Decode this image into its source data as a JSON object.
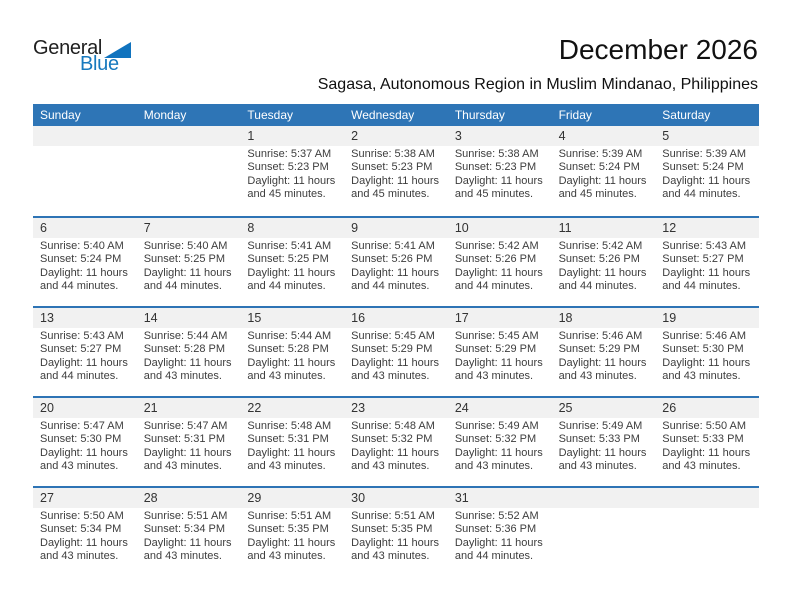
{
  "logo": {
    "general": "General",
    "blue": "Blue"
  },
  "title": "December 2026",
  "subtitle": "Sagasa, Autonomous Region in Muslim Mindanao, Philippines",
  "colors": {
    "header_bg": "#2E75B6",
    "row_divider": "#2E74B5",
    "daynum_bg": "#F1F1F1",
    "logo_blue": "#1779BE"
  },
  "weekdays": [
    "Sunday",
    "Monday",
    "Tuesday",
    "Wednesday",
    "Thursday",
    "Friday",
    "Saturday"
  ],
  "weeks": [
    [
      {
        "day": ""
      },
      {
        "day": ""
      },
      {
        "day": "1",
        "sunrise": "Sunrise: 5:37 AM",
        "sunset": "Sunset: 5:23 PM",
        "daylight": "Daylight: 11 hours and 45 minutes."
      },
      {
        "day": "2",
        "sunrise": "Sunrise: 5:38 AM",
        "sunset": "Sunset: 5:23 PM",
        "daylight": "Daylight: 11 hours and 45 minutes."
      },
      {
        "day": "3",
        "sunrise": "Sunrise: 5:38 AM",
        "sunset": "Sunset: 5:23 PM",
        "daylight": "Daylight: 11 hours and 45 minutes."
      },
      {
        "day": "4",
        "sunrise": "Sunrise: 5:39 AM",
        "sunset": "Sunset: 5:24 PM",
        "daylight": "Daylight: 11 hours and 45 minutes."
      },
      {
        "day": "5",
        "sunrise": "Sunrise: 5:39 AM",
        "sunset": "Sunset: 5:24 PM",
        "daylight": "Daylight: 11 hours and 44 minutes."
      }
    ],
    [
      {
        "day": "6",
        "sunrise": "Sunrise: 5:40 AM",
        "sunset": "Sunset: 5:24 PM",
        "daylight": "Daylight: 11 hours and 44 minutes."
      },
      {
        "day": "7",
        "sunrise": "Sunrise: 5:40 AM",
        "sunset": "Sunset: 5:25 PM",
        "daylight": "Daylight: 11 hours and 44 minutes."
      },
      {
        "day": "8",
        "sunrise": "Sunrise: 5:41 AM",
        "sunset": "Sunset: 5:25 PM",
        "daylight": "Daylight: 11 hours and 44 minutes."
      },
      {
        "day": "9",
        "sunrise": "Sunrise: 5:41 AM",
        "sunset": "Sunset: 5:26 PM",
        "daylight": "Daylight: 11 hours and 44 minutes."
      },
      {
        "day": "10",
        "sunrise": "Sunrise: 5:42 AM",
        "sunset": "Sunset: 5:26 PM",
        "daylight": "Daylight: 11 hours and 44 minutes."
      },
      {
        "day": "11",
        "sunrise": "Sunrise: 5:42 AM",
        "sunset": "Sunset: 5:26 PM",
        "daylight": "Daylight: 11 hours and 44 minutes."
      },
      {
        "day": "12",
        "sunrise": "Sunrise: 5:43 AM",
        "sunset": "Sunset: 5:27 PM",
        "daylight": "Daylight: 11 hours and 44 minutes."
      }
    ],
    [
      {
        "day": "13",
        "sunrise": "Sunrise: 5:43 AM",
        "sunset": "Sunset: 5:27 PM",
        "daylight": "Daylight: 11 hours and 44 minutes."
      },
      {
        "day": "14",
        "sunrise": "Sunrise: 5:44 AM",
        "sunset": "Sunset: 5:28 PM",
        "daylight": "Daylight: 11 hours and 43 minutes."
      },
      {
        "day": "15",
        "sunrise": "Sunrise: 5:44 AM",
        "sunset": "Sunset: 5:28 PM",
        "daylight": "Daylight: 11 hours and 43 minutes."
      },
      {
        "day": "16",
        "sunrise": "Sunrise: 5:45 AM",
        "sunset": "Sunset: 5:29 PM",
        "daylight": "Daylight: 11 hours and 43 minutes."
      },
      {
        "day": "17",
        "sunrise": "Sunrise: 5:45 AM",
        "sunset": "Sunset: 5:29 PM",
        "daylight": "Daylight: 11 hours and 43 minutes."
      },
      {
        "day": "18",
        "sunrise": "Sunrise: 5:46 AM",
        "sunset": "Sunset: 5:29 PM",
        "daylight": "Daylight: 11 hours and 43 minutes."
      },
      {
        "day": "19",
        "sunrise": "Sunrise: 5:46 AM",
        "sunset": "Sunset: 5:30 PM",
        "daylight": "Daylight: 11 hours and 43 minutes."
      }
    ],
    [
      {
        "day": "20",
        "sunrise": "Sunrise: 5:47 AM",
        "sunset": "Sunset: 5:30 PM",
        "daylight": "Daylight: 11 hours and 43 minutes."
      },
      {
        "day": "21",
        "sunrise": "Sunrise: 5:47 AM",
        "sunset": "Sunset: 5:31 PM",
        "daylight": "Daylight: 11 hours and 43 minutes."
      },
      {
        "day": "22",
        "sunrise": "Sunrise: 5:48 AM",
        "sunset": "Sunset: 5:31 PM",
        "daylight": "Daylight: 11 hours and 43 minutes."
      },
      {
        "day": "23",
        "sunrise": "Sunrise: 5:48 AM",
        "sunset": "Sunset: 5:32 PM",
        "daylight": "Daylight: 11 hours and 43 minutes."
      },
      {
        "day": "24",
        "sunrise": "Sunrise: 5:49 AM",
        "sunset": "Sunset: 5:32 PM",
        "daylight": "Daylight: 11 hours and 43 minutes."
      },
      {
        "day": "25",
        "sunrise": "Sunrise: 5:49 AM",
        "sunset": "Sunset: 5:33 PM",
        "daylight": "Daylight: 11 hours and 43 minutes."
      },
      {
        "day": "26",
        "sunrise": "Sunrise: 5:50 AM",
        "sunset": "Sunset: 5:33 PM",
        "daylight": "Daylight: 11 hours and 43 minutes."
      }
    ],
    [
      {
        "day": "27",
        "sunrise": "Sunrise: 5:50 AM",
        "sunset": "Sunset: 5:34 PM",
        "daylight": "Daylight: 11 hours and 43 minutes."
      },
      {
        "day": "28",
        "sunrise": "Sunrise: 5:51 AM",
        "sunset": "Sunset: 5:34 PM",
        "daylight": "Daylight: 11 hours and 43 minutes."
      },
      {
        "day": "29",
        "sunrise": "Sunrise: 5:51 AM",
        "sunset": "Sunset: 5:35 PM",
        "daylight": "Daylight: 11 hours and 43 minutes."
      },
      {
        "day": "30",
        "sunrise": "Sunrise: 5:51 AM",
        "sunset": "Sunset: 5:35 PM",
        "daylight": "Daylight: 11 hours and 43 minutes."
      },
      {
        "day": "31",
        "sunrise": "Sunrise: 5:52 AM",
        "sunset": "Sunset: 5:36 PM",
        "daylight": "Daylight: 11 hours and 44 minutes."
      },
      {
        "day": ""
      },
      {
        "day": ""
      }
    ]
  ]
}
